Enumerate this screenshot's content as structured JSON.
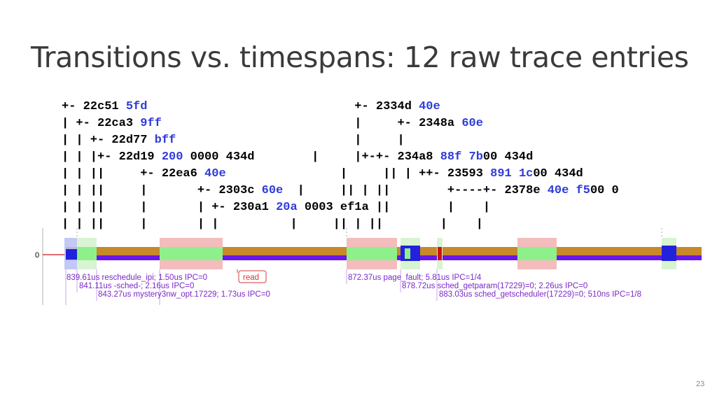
{
  "slide": {
    "title": "Transitions vs. timespans: 12 raw trace entries",
    "page_number": "23"
  },
  "trace_lines": [
    [
      {
        "t": "+- 22c51 "
      },
      {
        "t": "5fd",
        "k": 1
      },
      {
        "t": "                             +- 2334d "
      },
      {
        "t": "40e",
        "k": 1
      }
    ],
    [
      {
        "t": "| +- 22ca3 "
      },
      {
        "t": "9ff",
        "k": 1
      },
      {
        "t": "                           |     +- 2348a "
      },
      {
        "t": "60e",
        "k": 1
      }
    ],
    [
      {
        "t": "| | +- 22d77 "
      },
      {
        "t": "bff",
        "k": 1
      },
      {
        "t": "                         |     |"
      }
    ],
    [
      {
        "t": "| | |+- 22d19 "
      },
      {
        "t": "200",
        "k": 1
      },
      {
        "t": " 0000 434d        |     |+-+- 234a8 "
      },
      {
        "t": "88f",
        "k": 1
      },
      {
        "t": " "
      },
      {
        "t": "7b",
        "k": 1
      },
      {
        "t": "00 434d"
      }
    ],
    [
      {
        "t": "| | ||     +- 22ea6 "
      },
      {
        "t": "40e",
        "k": 1
      },
      {
        "t": "                |     || | ++- 23593 "
      },
      {
        "t": "891",
        "k": 1
      },
      {
        "t": " "
      },
      {
        "t": "1c",
        "k": 1
      },
      {
        "t": "00 434d"
      }
    ],
    [
      {
        "t": "| | ||     |       +- 2303c "
      },
      {
        "t": "60e",
        "k": 1
      },
      {
        "t": "  |     || | ||        +----+- 2378e "
      },
      {
        "t": "40e",
        "k": 1
      },
      {
        "t": " "
      },
      {
        "t": "f5",
        "k": 1
      },
      {
        "t": "00 0"
      }
    ],
    [
      {
        "t": "| | ||     |       | +- 230a1 "
      },
      {
        "t": "20a",
        "k": 1
      },
      {
        "t": " 0003 ef1a ||        |    |"
      }
    ],
    [
      {
        "t": "| | ||     |       | |          |     || | ||        |    |"
      }
    ]
  ],
  "timeline": {
    "row_label": "0",
    "colors": {
      "orange": "#c8892a",
      "purple": "#6a16e8",
      "pink": "#f4bcbc",
      "green": "#8ef08a",
      "blue": "#2222dd",
      "red": "#c81414",
      "label_text": "#7a28c8",
      "read_box": "#d23b3b"
    },
    "annotations": [
      {
        "text": "839.61us reschedule_ipi; 1.50us IPC=0"
      },
      {
        "text": "841.11us -sched-; 2.16us IPC=0"
      },
      {
        "text": "843.27us mystery3nw_opt.17229; 1.73us IPC=0"
      },
      {
        "text": "read"
      },
      {
        "text": "872.37us page_fault; 5.81us IPC=1/4"
      },
      {
        "text": "878.72us sched_getparam(17229)=0; 2.26us IPC=0"
      },
      {
        "text": "883.03us sched_getscheduler(17229)=0; 510ns IPC=1/8"
      }
    ]
  }
}
